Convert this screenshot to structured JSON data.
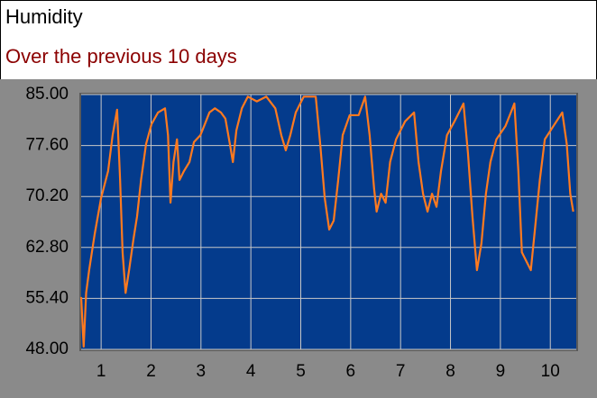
{
  "chart_data": {
    "type": "line",
    "title": "Humidity",
    "subtitle": "Over the previous 10 days",
    "x": [
      0.6,
      0.65,
      0.7,
      0.76,
      0.87,
      1.0,
      1.14,
      1.23,
      1.32,
      1.38,
      1.43,
      1.49,
      1.56,
      1.65,
      1.72,
      1.8,
      1.9,
      2.01,
      2.14,
      2.28,
      2.34,
      2.39,
      2.45,
      2.52,
      2.57,
      2.66,
      2.77,
      2.86,
      2.99,
      3.1,
      3.17,
      3.28,
      3.4,
      3.49,
      3.58,
      3.64,
      3.71,
      3.82,
      3.94,
      4.12,
      4.31,
      4.49,
      4.61,
      4.7,
      4.79,
      4.9,
      5.06,
      5.3,
      5.39,
      5.48,
      5.57,
      5.66,
      5.75,
      5.84,
      5.98,
      6.16,
      6.29,
      6.38,
      6.47,
      6.52,
      6.61,
      6.7,
      6.79,
      6.91,
      7.09,
      7.27,
      7.36,
      7.45,
      7.54,
      7.63,
      7.72,
      7.81,
      7.93,
      8.08,
      8.26,
      8.35,
      8.44,
      8.53,
      8.62,
      8.71,
      8.8,
      8.92,
      9.1,
      9.21,
      9.28,
      9.36,
      9.43,
      9.52,
      9.61,
      9.7,
      9.79,
      9.89,
      10.06,
      10.24,
      10.33,
      10.4,
      10.46
    ],
    "series": [
      {
        "name": "Humidity",
        "color": "#ff7a1f",
        "values": [
          55.6,
          48.4,
          56.2,
          59.5,
          64.7,
          70,
          73.9,
          79.1,
          82.8,
          72.6,
          62.1,
          56.2,
          59.5,
          64.1,
          67.3,
          72.6,
          77.8,
          80.7,
          82.4,
          83,
          79.1,
          69.3,
          75.2,
          78.5,
          72.6,
          73.9,
          75.2,
          78.1,
          79.1,
          81.1,
          82.4,
          83,
          82.4,
          81.5,
          77.8,
          75.2,
          79.8,
          83,
          84.7,
          84,
          84.7,
          83,
          79.1,
          76.9,
          79.1,
          82.4,
          84.7,
          84.7,
          77.8,
          70,
          65.4,
          66.7,
          72.6,
          79.1,
          82,
          82,
          84.7,
          79.1,
          71.3,
          68,
          70.6,
          69.3,
          75.2,
          78.5,
          81.1,
          82.4,
          75.2,
          70.6,
          68,
          70.6,
          68.7,
          73.9,
          79.1,
          81.1,
          83.7,
          76.5,
          67.3,
          59.5,
          63.4,
          70.6,
          75.2,
          78.5,
          80.4,
          82.4,
          83.7,
          73.9,
          62.1,
          60.8,
          59.5,
          66,
          72.6,
          78.5,
          80.4,
          82.4,
          77.8,
          70.6,
          68
        ]
      }
    ],
    "xlim": [
      0.6,
      10.52
    ],
    "xticks": [
      1,
      2,
      3,
      4,
      5,
      6,
      7,
      8,
      9,
      10
    ],
    "ylim": [
      48,
      85
    ],
    "yticks": [
      {
        "value": 48,
        "label": "48.00"
      },
      {
        "value": 55.4,
        "label": "55.40"
      },
      {
        "value": 62.8,
        "label": "62.80"
      },
      {
        "value": 70.2,
        "label": "70.20"
      },
      {
        "value": 77.6,
        "label": "77.60"
      },
      {
        "value": 85,
        "label": "85.00"
      }
    ],
    "grid": true
  }
}
